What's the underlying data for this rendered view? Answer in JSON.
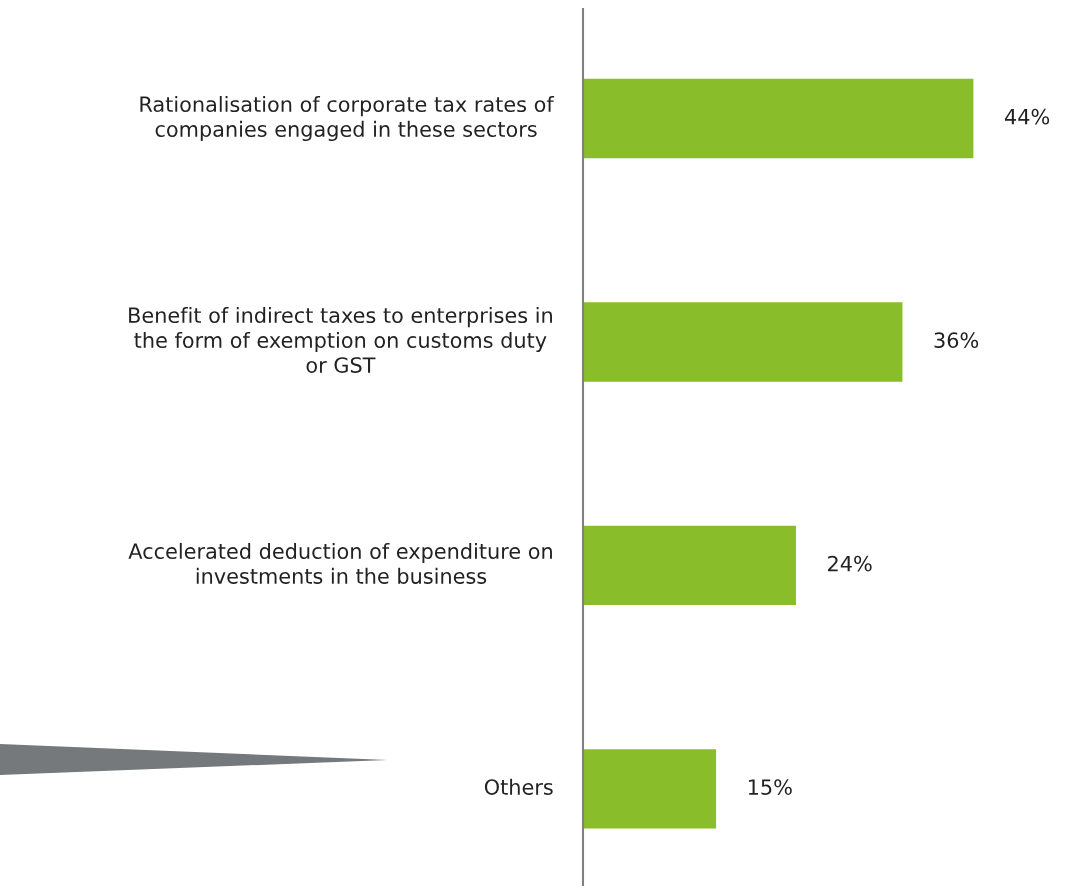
{
  "chart_data": {
    "type": "bar",
    "orientation": "horizontal",
    "categories": [
      "Rationalisation of corporate tax rates of\ncompanies engaged in these sectors",
      "Benefit of indirect taxes to enterprises in\nthe form of exemption on customs duty\nor GST",
      "Accelerated deduction of expenditure on\ninvestments in the business",
      "Others"
    ],
    "values": [
      44,
      36,
      24,
      15
    ],
    "value_labels": [
      "44%",
      "36%",
      "24%",
      "15%"
    ],
    "color": "#8abd2a",
    "tick_labels": false
  }
}
